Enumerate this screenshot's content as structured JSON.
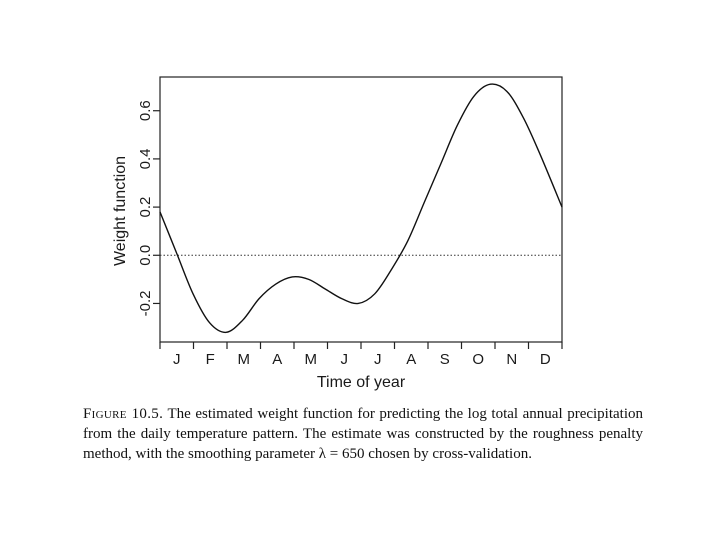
{
  "chart_data": {
    "type": "line",
    "xlabel": "Time of year",
    "ylabel": "Weight function",
    "x_tick_labels": [
      "J",
      "F",
      "M",
      "A",
      "M",
      "J",
      "J",
      "A",
      "S",
      "O",
      "N",
      "D"
    ],
    "y_tick_labels": [
      "-0.2",
      "0.0",
      "0.2",
      "0.4",
      "0.6"
    ],
    "xlim": [
      0,
      365
    ],
    "ylim": [
      -0.36,
      0.74
    ],
    "reference_line": {
      "y": 0.0,
      "style": "dotted"
    },
    "grid": false,
    "series": [
      {
        "x": [
          0,
          15,
          30,
          45,
          60,
          75,
          90,
          105,
          120,
          135,
          150,
          165,
          180,
          195,
          210,
          225,
          240,
          255,
          270,
          285,
          300,
          315,
          330,
          345,
          365
        ],
        "y": [
          0.18,
          0.01,
          -0.16,
          -0.28,
          -0.32,
          -0.27,
          -0.18,
          -0.12,
          -0.09,
          -0.1,
          -0.14,
          -0.18,
          -0.2,
          -0.16,
          -0.06,
          0.06,
          0.22,
          0.38,
          0.54,
          0.66,
          0.71,
          0.68,
          0.57,
          0.42,
          0.2
        ]
      }
    ]
  },
  "caption": {
    "label": "Figure 10.5.",
    "text": "The estimated weight function for predicting the log total annual precipitation from the daily temperature pattern. The estimate was constructed by the roughness penalty method, with the smoothing parameter λ = 650 chosen by cross-validation."
  }
}
